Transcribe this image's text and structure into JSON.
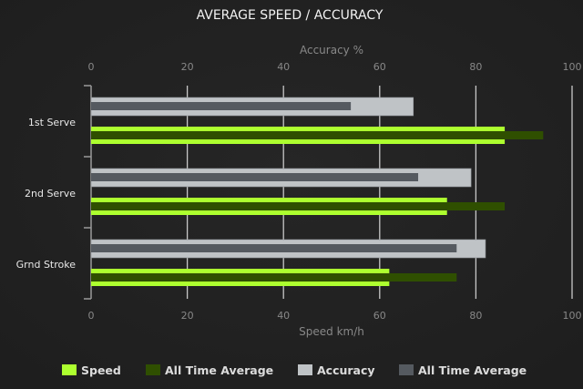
{
  "chart_data": {
    "type": "bar",
    "orientation": "horizontal",
    "title": "AVERAGE SPEED / ACCURACY",
    "top_axis": {
      "label": "Accuracy %",
      "range": [
        0,
        100
      ],
      "ticks": [
        "0",
        "20",
        "40",
        "60",
        "80",
        "100"
      ]
    },
    "bottom_axis": {
      "label": "Speed km/h",
      "range": [
        0,
        100
      ],
      "ticks": [
        "0",
        "20",
        "40",
        "60",
        "80",
        "100"
      ]
    },
    "categories": [
      "1st Serve",
      "2nd Serve",
      "Grnd Stroke"
    ],
    "grid": true,
    "legend_position": "bottom",
    "series": [
      {
        "name": "Speed",
        "axis": "bottom",
        "color": "#adff2f",
        "values": [
          86,
          74,
          62
        ]
      },
      {
        "name": "All Time Average",
        "axis": "bottom",
        "color": "#2f4f00",
        "values": [
          94,
          86,
          76
        ]
      },
      {
        "name": "Accuracy",
        "axis": "top",
        "color": "#bfc3c6",
        "values": [
          67,
          79,
          82
        ]
      },
      {
        "name": "All Time Average",
        "axis": "top",
        "color": "#555a60",
        "values": [
          54,
          68,
          76
        ]
      }
    ]
  }
}
